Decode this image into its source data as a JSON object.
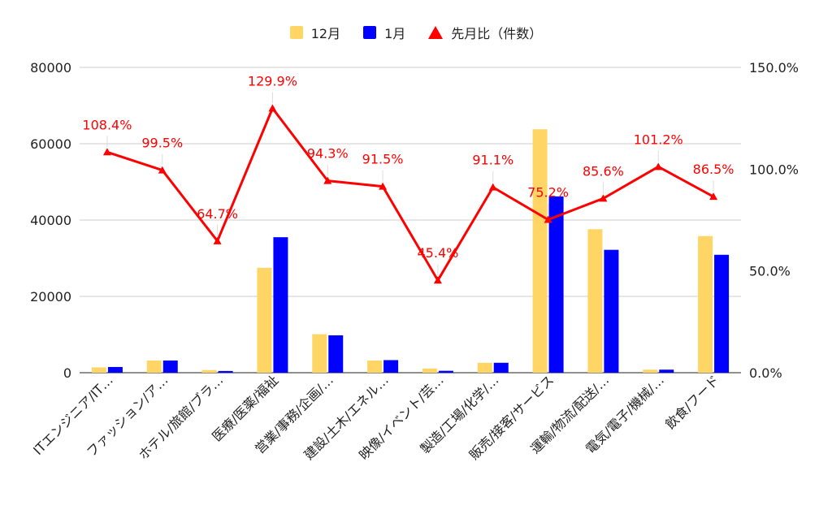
{
  "colors": {
    "dec": "#ffd666",
    "jan": "#0000ff",
    "ratio": "#ff0000",
    "grid": "#cccccc",
    "axis": "#222222"
  },
  "legend": [
    {
      "label": "12月",
      "kind": "bar",
      "color": "#ffd666"
    },
    {
      "label": "1月",
      "kind": "bar",
      "color": "#0000ff"
    },
    {
      "label": "先月比（件数）",
      "kind": "triangle",
      "color": "#ff0000"
    }
  ],
  "chart_data": {
    "type": "bar+line",
    "categories": [
      "ITエンジニア/IT…",
      "ファッション/ア…",
      "ホテル/旅館/ブラ…",
      "医療/医薬/福祉",
      "営業/事務/企画/…",
      "建設/土木/エネル…",
      "映像/イベント/芸…",
      "製造/工場/化学/…",
      "販売/接客/サービス",
      "運輸/物流/配送/…",
      "電気/電子/機械/…",
      "飲食/フード"
    ],
    "series": [
      {
        "name": "12月",
        "axis": "left",
        "values": [
          1400,
          3200,
          700,
          27500,
          10100,
          3200,
          1100,
          2600,
          63800,
          37600,
          800,
          35800
        ]
      },
      {
        "name": "1月",
        "axis": "left",
        "values": [
          1500,
          3200,
          450,
          35500,
          9800,
          3300,
          500,
          2600,
          46200,
          32200,
          800,
          30900
        ]
      },
      {
        "name": "先月比（件数）",
        "axis": "right",
        "type": "line",
        "values": [
          108.4,
          99.5,
          64.7,
          129.9,
          94.3,
          91.5,
          45.4,
          91.1,
          75.2,
          85.6,
          101.2,
          86.5
        ],
        "labels": [
          "108.4%",
          "99.5%",
          "64.7%",
          "129.9%",
          "94.3%",
          "91.5%",
          "45.4%",
          "91.1%",
          "75.2%",
          "85.6%",
          "101.2%",
          "86.5%"
        ]
      }
    ],
    "y_left": {
      "min": 0,
      "max": 80000,
      "ticks": [
        0,
        20000,
        40000,
        60000,
        80000
      ],
      "tick_labels": [
        "0",
        "20000",
        "40000",
        "60000",
        "80000"
      ]
    },
    "y_right": {
      "min": 0,
      "max": 150,
      "ticks": [
        0,
        50,
        100,
        150
      ],
      "tick_labels": [
        "0.0%",
        "50.0%",
        "100.0%",
        "150.0%"
      ]
    },
    "grid": true,
    "legend_position": "top-center"
  }
}
